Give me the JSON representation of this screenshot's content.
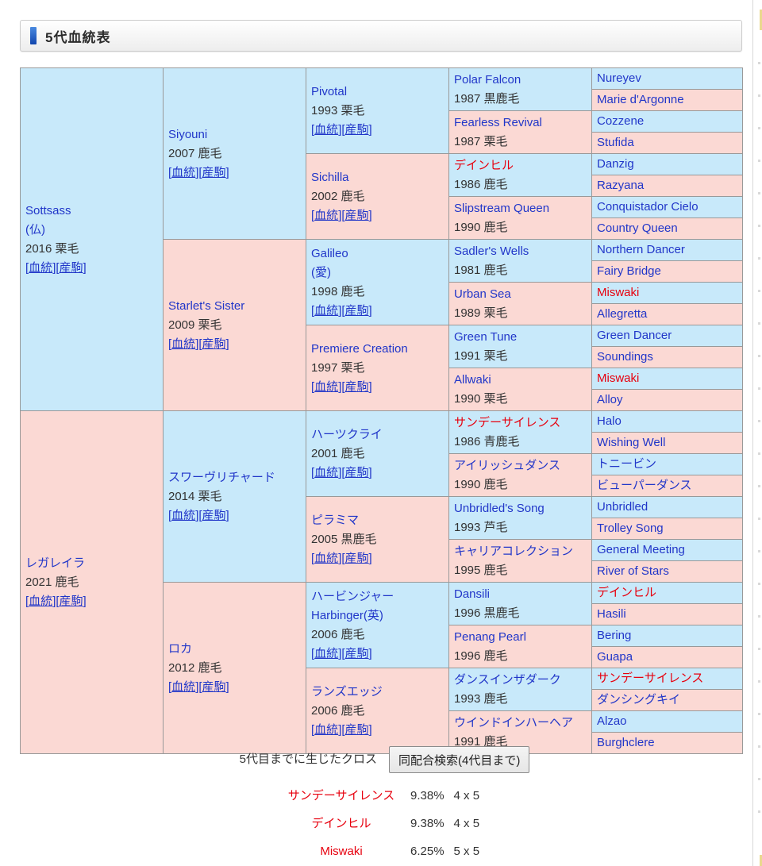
{
  "page": {
    "title": "5代血統表"
  },
  "colors": {
    "male_bg": "#c8e9fa",
    "female_bg": "#fbd9d4",
    "link_blue": "#2136c9",
    "highlight_red": "#e7000e",
    "info_text": "#333333",
    "cell_border": "#999999",
    "accent_bar": "#1f5fd0",
    "header_border": "#cccccc"
  },
  "pedigree": {
    "bracket_open": "[",
    "bracket_close": "]",
    "blood_label": "血統",
    "offspring_label": "産駒",
    "generations": [
      {
        "span": 16,
        "cells": [
          {
            "names": [
              "Sottsass",
              "(仏)"
            ],
            "info": "2016 栗毛",
            "links": true
          },
          {
            "names": [
              "レガレイラ"
            ],
            "info": "2021 鹿毛",
            "links": true
          }
        ]
      },
      {
        "span": 8,
        "cells": [
          {
            "names": [
              "Siyouni"
            ],
            "info": "2007 鹿毛",
            "links": true
          },
          {
            "names": [
              "Starlet's Sister"
            ],
            "info": "2009 栗毛",
            "links": true
          },
          {
            "names": [
              "スワーヴリチャード"
            ],
            "info": "2014 栗毛",
            "links": true
          },
          {
            "names": [
              "ロカ"
            ],
            "info": "2012 鹿毛",
            "links": true
          }
        ]
      },
      {
        "span": 4,
        "cells": [
          {
            "names": [
              "Pivotal"
            ],
            "info": "1993 栗毛",
            "links": true
          },
          {
            "names": [
              "Sichilla"
            ],
            "info": "2002 鹿毛",
            "links": true
          },
          {
            "names": [
              "Galileo",
              "(愛)"
            ],
            "info": "1998 鹿毛",
            "links": true
          },
          {
            "names": [
              "Premiere Creation"
            ],
            "info": "1997 栗毛",
            "links": true
          },
          {
            "names": [
              "ハーツクライ"
            ],
            "info": "2001 鹿毛",
            "links": true
          },
          {
            "names": [
              "ピラミマ"
            ],
            "info": "2005 黒鹿毛",
            "links": true
          },
          {
            "names": [
              "ハービンジャー",
              "Harbinger(英)"
            ],
            "info": "2006 鹿毛",
            "links": true
          },
          {
            "names": [
              "ランズエッジ"
            ],
            "info": "2006 鹿毛",
            "links": true
          }
        ]
      },
      {
        "span": 2,
        "cells": [
          {
            "names": [
              "Polar Falcon"
            ],
            "info": "1987 黒鹿毛"
          },
          {
            "names": [
              "Fearless Revival"
            ],
            "info": "1987 栗毛"
          },
          {
            "names": [
              "デインヒル"
            ],
            "info": "1986 鹿毛",
            "red": true
          },
          {
            "names": [
              "Slipstream Queen"
            ],
            "info": "1990 鹿毛"
          },
          {
            "names": [
              "Sadler's Wells"
            ],
            "info": "1981 鹿毛"
          },
          {
            "names": [
              "Urban Sea"
            ],
            "info": "1989 栗毛"
          },
          {
            "names": [
              "Green Tune"
            ],
            "info": "1991 栗毛"
          },
          {
            "names": [
              "Allwaki"
            ],
            "info": "1990 栗毛"
          },
          {
            "names": [
              "サンデーサイレンス"
            ],
            "info": "1986 青鹿毛",
            "red": true
          },
          {
            "names": [
              "アイリッシュダンス"
            ],
            "info": "1990 鹿毛"
          },
          {
            "names": [
              "Unbridled's Song"
            ],
            "info": "1993 芦毛"
          },
          {
            "names": [
              "キャリアコレクション"
            ],
            "info": "1995 鹿毛"
          },
          {
            "names": [
              "Dansili"
            ],
            "info": "1996 黒鹿毛"
          },
          {
            "names": [
              "Penang Pearl"
            ],
            "info": "1996 鹿毛"
          },
          {
            "names": [
              "ダンスインザダーク"
            ],
            "info": "1993 鹿毛"
          },
          {
            "names": [
              "ウインドインハーヘア"
            ],
            "info": "1991 鹿毛"
          }
        ]
      },
      {
        "span": 1,
        "cells": [
          {
            "names": [
              "Nureyev"
            ]
          },
          {
            "names": [
              "Marie d'Argonne"
            ]
          },
          {
            "names": [
              "Cozzene"
            ]
          },
          {
            "names": [
              "Stufida"
            ]
          },
          {
            "names": [
              "Danzig"
            ]
          },
          {
            "names": [
              "Razyana"
            ]
          },
          {
            "names": [
              "Conquistador Cielo"
            ]
          },
          {
            "names": [
              "Country Queen"
            ]
          },
          {
            "names": [
              "Northern Dancer"
            ]
          },
          {
            "names": [
              "Fairy Bridge"
            ]
          },
          {
            "names": [
              "Miswaki"
            ],
            "red": true
          },
          {
            "names": [
              "Allegretta"
            ]
          },
          {
            "names": [
              "Green Dancer"
            ]
          },
          {
            "names": [
              "Soundings"
            ]
          },
          {
            "names": [
              "Miswaki"
            ],
            "red": true
          },
          {
            "names": [
              "Alloy"
            ]
          },
          {
            "names": [
              "Halo"
            ]
          },
          {
            "names": [
              "Wishing Well"
            ]
          },
          {
            "names": [
              "トニービン"
            ]
          },
          {
            "names": [
              "ビューパーダンス"
            ]
          },
          {
            "names": [
              "Unbridled"
            ]
          },
          {
            "names": [
              "Trolley Song"
            ]
          },
          {
            "names": [
              "General Meeting"
            ]
          },
          {
            "names": [
              "River of Stars"
            ]
          },
          {
            "names": [
              "デインヒル"
            ],
            "red": true
          },
          {
            "names": [
              "Hasili"
            ]
          },
          {
            "names": [
              "Bering"
            ]
          },
          {
            "names": [
              "Guapa"
            ]
          },
          {
            "names": [
              "サンデーサイレンス"
            ],
            "red": true
          },
          {
            "names": [
              "ダンシングキイ"
            ]
          },
          {
            "names": [
              "Alzao"
            ]
          },
          {
            "names": [
              "Burghclere"
            ]
          }
        ]
      }
    ]
  },
  "footer": {
    "cross_label": "5代目までに生じたクロス",
    "search_button": "同配合検索(4代目まで)",
    "crosses": [
      {
        "name": "サンデーサイレンス",
        "percent": "9.38%",
        "pattern": "4 x 5"
      },
      {
        "name": "デインヒル",
        "percent": "9.38%",
        "pattern": "4 x 5"
      },
      {
        "name": "Miswaki",
        "percent": "6.25%",
        "pattern": "5 x 5"
      }
    ]
  }
}
